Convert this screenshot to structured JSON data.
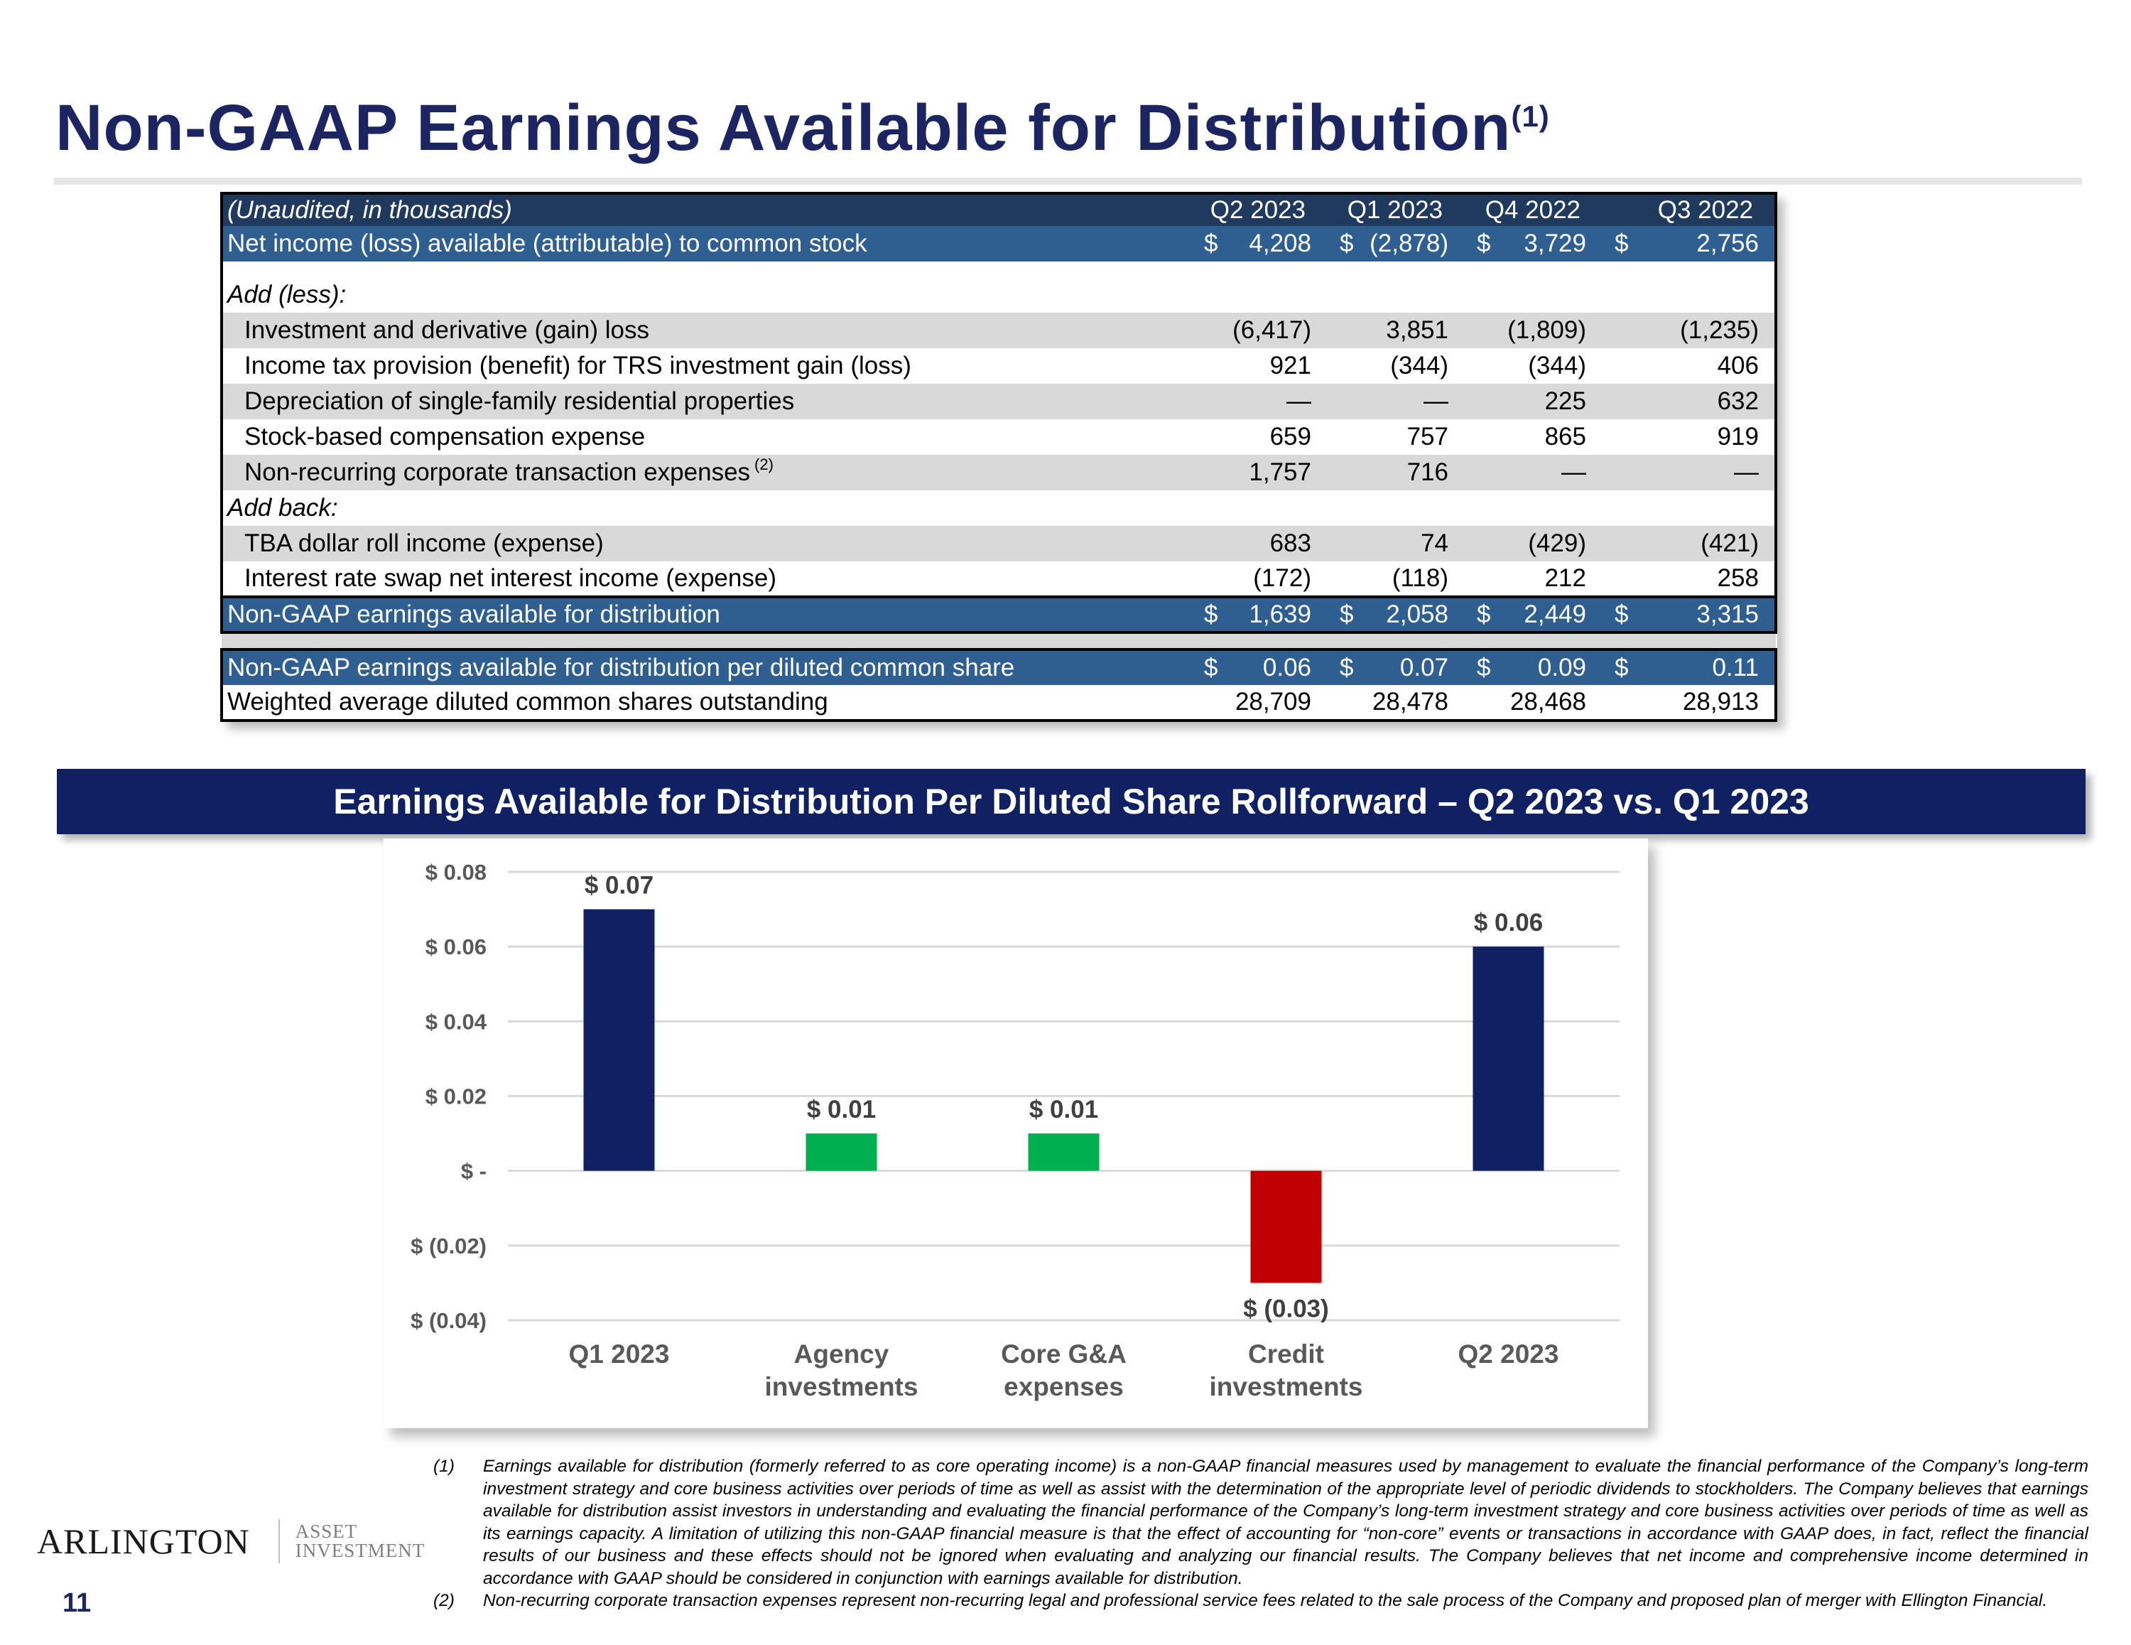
{
  "title": {
    "text": "Non-GAAP Earnings Available for Distribution",
    "superscript": "(1)"
  },
  "table": {
    "header": {
      "label": "(Unaudited, in thousands)",
      "columns": [
        "Q2 2023",
        "Q1 2023",
        "Q4 2022",
        "Q3 2022"
      ]
    },
    "net_income": {
      "label": "Net income (loss) available (attributable) to common stock",
      "currency": "$",
      "values": [
        "4,208",
        "(2,878)",
        "3,729",
        "2,756"
      ]
    },
    "add_less_label": "Add (less):",
    "add_less_rows": [
      {
        "label": "Investment and derivative (gain) loss",
        "values": [
          "(6,417)",
          "3,851",
          "(1,809)",
          "(1,235)"
        ]
      },
      {
        "label": "Income tax provision (benefit) for TRS investment gain (loss)",
        "values": [
          "921",
          "(344)",
          "(344)",
          "406"
        ]
      },
      {
        "label": "Depreciation of single-family residential properties",
        "values": [
          "—",
          "—",
          "225",
          "632"
        ]
      },
      {
        "label": "Stock-based compensation expense",
        "values": [
          "659",
          "757",
          "865",
          "919"
        ]
      },
      {
        "label": "Non-recurring corporate transaction expenses",
        "note": "(2)",
        "values": [
          "1,757",
          "716",
          "—",
          "—"
        ]
      }
    ],
    "add_back_label": "Add back:",
    "add_back_rows": [
      {
        "label": "TBA dollar roll income (expense)",
        "values": [
          "683",
          "74",
          "(429)",
          "(421)"
        ]
      },
      {
        "label": "Interest rate swap net interest income (expense)",
        "values": [
          "(172)",
          "(118)",
          "212",
          "258"
        ]
      }
    ],
    "ead": {
      "label": "Non-GAAP earnings available for distribution",
      "currency": "$",
      "values": [
        "1,639",
        "2,058",
        "2,449",
        "3,315"
      ]
    },
    "eps": {
      "label": "Non-GAAP earnings available for distribution per diluted common share",
      "currency": "$",
      "values": [
        "0.06",
        "0.07",
        "0.09",
        "0.11"
      ]
    },
    "shares": {
      "label": "Weighted average diluted common shares outstanding",
      "values": [
        "28,709",
        "28,478",
        "28,468",
        "28,913"
      ]
    }
  },
  "banner": "Earnings Available for Distribution Per Diluted Share Rollforward – Q2 2023 vs. Q1 2023",
  "chart_data": {
    "type": "bar",
    "title": "Earnings Available for Distribution Per Diluted Share Rollforward – Q2 2023 vs. Q1 2023",
    "categories": [
      "Q1 2023",
      "Agency investments",
      "Core G&A expenses",
      "Credit investments",
      "Q2 2023"
    ],
    "values": [
      0.07,
      0.01,
      0.01,
      -0.03,
      0.06
    ],
    "data_labels": [
      "$ 0.07",
      "$ 0.01",
      "$ 0.01",
      "$ (0.03)",
      "$ 0.06"
    ],
    "bar_colors": [
      "#0f2163",
      "#00b050",
      "#00b050",
      "#c00000",
      "#0f2163"
    ],
    "ylim": [
      -0.04,
      0.08
    ],
    "yticks": [
      0.08,
      0.06,
      0.04,
      0.02,
      0,
      -0.02,
      -0.04
    ],
    "ytick_labels": [
      "$ 0.08",
      "$ 0.06",
      "$ 0.04",
      "$ 0.02",
      "$ -",
      "$ (0.02)",
      "$ (0.04)"
    ],
    "grid": true,
    "xlabel": "",
    "ylabel": ""
  },
  "footnotes": [
    {
      "num": "(1)",
      "text": "Earnings available for distribution (formerly referred to as core operating income) is a non-GAAP financial measures used by management to evaluate the financial performance of the Company’s long-term investment strategy and core business activities over periods of time as well as assist with the determination of the appropriate level of periodic dividends to stockholders. The Company believes that earnings available for distribution assist investors in understanding and evaluating the financial performance of the Company’s long-term investment strategy and core business activities over periods of time as well as its earnings capacity. A limitation of utilizing this non-GAAP financial measure is that the effect of accounting for “non-core” events or transactions in accordance with GAAP does, in fact, reflect the financial results of our business and these effects should not be ignored when evaluating and analyzing our financial results. The Company believes that net income and comprehensive income determined in accordance with GAAP should be considered in conjunction with earnings available for distribution."
    },
    {
      "num": "(2)",
      "text": "Non-recurring corporate transaction expenses represent non-recurring legal and professional service fees related to the sale process of the Company and proposed plan of merger with Ellington Financial."
    }
  ],
  "logo": {
    "main": "ARLINGTON",
    "sub_line1": "ASSET",
    "sub_line2": "INVESTMENT"
  },
  "page_number": "11"
}
